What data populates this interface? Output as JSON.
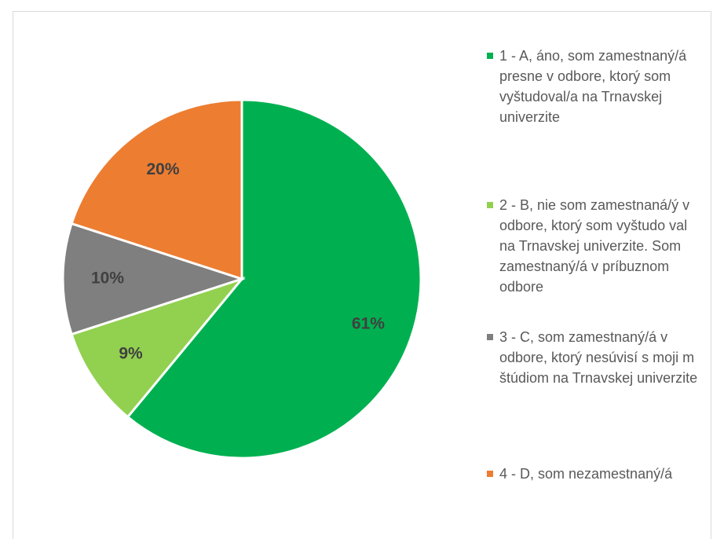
{
  "chart_data": {
    "type": "pie",
    "categories": [
      "1 - A, áno, som zamestnaný/á presne v odbore, ktorý som vyštudoval/a na Trnavskej univerzite",
      "2 - B, nie som zamestnaná/ý v odbore, ktorý som vyštudo val na Trnavskej univerzite. Som zamestnaný/á v príbuznom odbore",
      "3 - C, som zamestnaný/á v odbore, ktorý nesúvisí s moji m štúdiom na Trnavskej univerzite",
      "4 - D, som nezamestnaný/á"
    ],
    "values": [
      61,
      9,
      10,
      20
    ],
    "value_labels": [
      "61%",
      "9%",
      "10%",
      "20%"
    ],
    "colors": [
      "#00b050",
      "#92d050",
      "#7f7f7f",
      "#ed7d31"
    ],
    "legend": "right"
  }
}
